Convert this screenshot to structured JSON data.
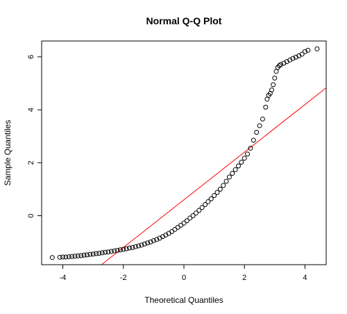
{
  "chart_data": {
    "type": "scatter",
    "title": "Normal Q-Q Plot",
    "xlabel": "Theoretical Quantiles",
    "ylabel": "Sample Quantiles",
    "xlim": [
      -4.7,
      4.7
    ],
    "ylim": [
      -1.85,
      6.6
    ],
    "xticks": [
      -4,
      -2,
      0,
      2,
      4
    ],
    "yticks": [
      0,
      2,
      4,
      6
    ],
    "grid": false,
    "point_color": "#000000",
    "line_color": "#ff0000",
    "reference_line": {
      "intercept": 0.6,
      "slope": 0.9
    },
    "series": [
      {
        "points": [
          [
            -4.35,
            -1.58
          ],
          [
            -4.1,
            -1.57
          ],
          [
            -4.0,
            -1.56
          ],
          [
            -3.9,
            -1.56
          ],
          [
            -3.8,
            -1.55
          ],
          [
            -3.7,
            -1.54
          ],
          [
            -3.6,
            -1.53
          ],
          [
            -3.5,
            -1.52
          ],
          [
            -3.4,
            -1.51
          ],
          [
            -3.3,
            -1.49
          ],
          [
            -3.2,
            -1.48
          ],
          [
            -3.1,
            -1.46
          ],
          [
            -3.0,
            -1.45
          ],
          [
            -2.9,
            -1.43
          ],
          [
            -2.8,
            -1.42
          ],
          [
            -2.7,
            -1.4
          ],
          [
            -2.6,
            -1.38
          ],
          [
            -2.5,
            -1.37
          ],
          [
            -2.4,
            -1.35
          ],
          [
            -2.3,
            -1.33
          ],
          [
            -2.2,
            -1.31
          ],
          [
            -2.1,
            -1.29
          ],
          [
            -2.0,
            -1.27
          ],
          [
            -1.9,
            -1.25
          ],
          [
            -1.8,
            -1.22
          ],
          [
            -1.7,
            -1.2
          ],
          [
            -1.6,
            -1.17
          ],
          [
            -1.5,
            -1.14
          ],
          [
            -1.4,
            -1.11
          ],
          [
            -1.3,
            -1.07
          ],
          [
            -1.2,
            -1.03
          ],
          [
            -1.1,
            -0.99
          ],
          [
            -1.0,
            -0.94
          ],
          [
            -0.9,
            -0.9
          ],
          [
            -0.8,
            -0.85
          ],
          [
            -0.7,
            -0.79
          ],
          [
            -0.6,
            -0.73
          ],
          [
            -0.5,
            -0.67
          ],
          [
            -0.4,
            -0.6
          ],
          [
            -0.3,
            -0.52
          ],
          [
            -0.2,
            -0.44
          ],
          [
            -0.1,
            -0.36
          ],
          [
            0.0,
            -0.28
          ],
          [
            0.1,
            -0.19
          ],
          [
            0.2,
            -0.09
          ],
          [
            0.3,
            0.0
          ],
          [
            0.4,
            0.1
          ],
          [
            0.5,
            0.2
          ],
          [
            0.6,
            0.31
          ],
          [
            0.7,
            0.42
          ],
          [
            0.8,
            0.53
          ],
          [
            0.9,
            0.64
          ],
          [
            1.0,
            0.76
          ],
          [
            1.1,
            0.88
          ],
          [
            1.2,
            1.0
          ],
          [
            1.3,
            1.14
          ],
          [
            1.4,
            1.3
          ],
          [
            1.5,
            1.46
          ],
          [
            1.6,
            1.6
          ],
          [
            1.7,
            1.74
          ],
          [
            1.8,
            1.88
          ],
          [
            1.9,
            2.02
          ],
          [
            2.0,
            2.17
          ],
          [
            2.1,
            2.33
          ],
          [
            2.2,
            2.55
          ],
          [
            2.3,
            2.85
          ],
          [
            2.4,
            3.15
          ],
          [
            2.5,
            3.4
          ],
          [
            2.6,
            3.65
          ],
          [
            2.7,
            4.1
          ],
          [
            2.75,
            4.4
          ],
          [
            2.8,
            4.55
          ],
          [
            2.85,
            4.62
          ],
          [
            2.9,
            4.75
          ],
          [
            2.95,
            4.95
          ],
          [
            3.0,
            5.2
          ],
          [
            3.05,
            5.45
          ],
          [
            3.1,
            5.6
          ],
          [
            3.15,
            5.67
          ],
          [
            3.2,
            5.71
          ],
          [
            3.3,
            5.76
          ],
          [
            3.4,
            5.82
          ],
          [
            3.5,
            5.88
          ],
          [
            3.6,
            5.94
          ],
          [
            3.7,
            5.99
          ],
          [
            3.8,
            6.04
          ],
          [
            3.9,
            6.1
          ],
          [
            4.0,
            6.2
          ],
          [
            4.1,
            6.25
          ],
          [
            4.4,
            6.3
          ]
        ]
      }
    ]
  }
}
